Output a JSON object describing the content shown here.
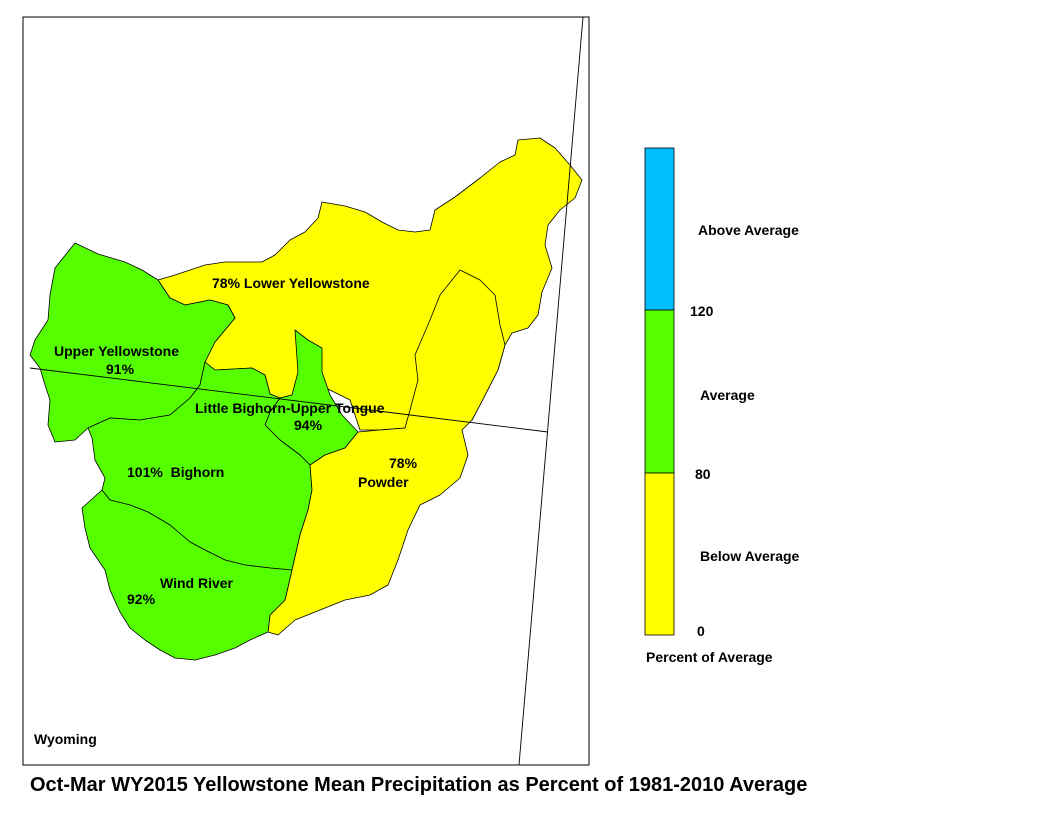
{
  "title": "Oct-Mar WY2015 Yellowstone Mean Precipitation as Percent of 1981-2010 Average",
  "state_label": "Wyoming",
  "colors": {
    "above": "#00BFFF",
    "average": "#55FF00",
    "below": "#FFFF00",
    "outline": "#000000"
  },
  "basins": [
    {
      "id": "upper-yellowstone",
      "name": "Upper Yellowstone",
      "percent": "91%",
      "category": "average"
    },
    {
      "id": "lower-yellowstone",
      "name": "Lower Yellowstone",
      "percent": "78%",
      "category": "below",
      "label": "78% Lower Yellowstone"
    },
    {
      "id": "little-bighorn",
      "name": "Little Bighorn-Upper Tongue",
      "percent": "94%",
      "category": "average"
    },
    {
      "id": "bighorn",
      "name": "Bighorn",
      "percent": "101%",
      "category": "average",
      "label": "101%  Bighorn"
    },
    {
      "id": "powder",
      "name": "Powder",
      "percent": "78%",
      "category": "below"
    },
    {
      "id": "wind-river",
      "name": "Wind River",
      "percent": "92%",
      "category": "average"
    }
  ],
  "legend": {
    "title": "Percent of Average",
    "categories": [
      "Above Average",
      "Average",
      "Below Average"
    ],
    "ticks": [
      "120",
      "80",
      "0"
    ]
  }
}
